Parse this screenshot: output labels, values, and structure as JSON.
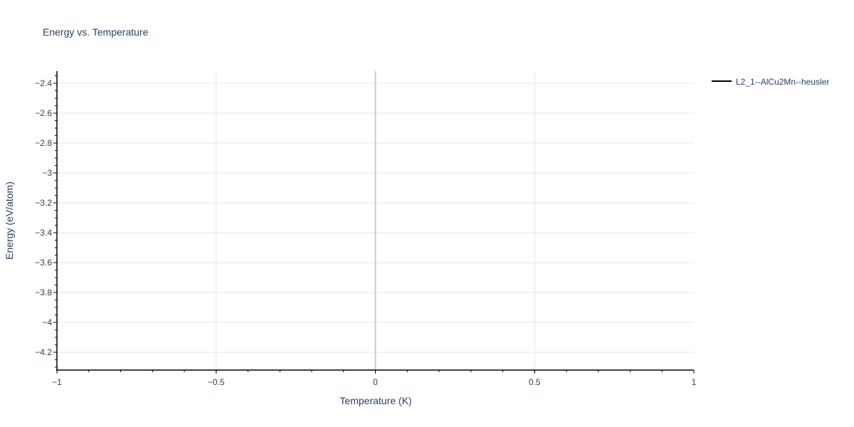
{
  "chart_data": {
    "type": "line",
    "title": "Energy vs. Temperature",
    "xlabel": "Temperature (K)",
    "ylabel": "Energy (eV/atom)",
    "xlim": [
      -1,
      1
    ],
    "ylim": [
      -4.319,
      -2.319
    ],
    "x_ticks": [
      -1,
      -0.5,
      0,
      0.5,
      1
    ],
    "x_tick_labels": [
      "−1",
      "−0.5",
      "0",
      "0.5",
      "1"
    ],
    "y_ticks": [
      -2.4,
      -2.6,
      -2.8,
      -3,
      -3.2,
      -3.4,
      -3.6,
      -3.8,
      -4,
      -4.2
    ],
    "y_tick_labels": [
      "−2.4",
      "−2.6",
      "−2.8",
      "−3",
      "−3.2",
      "−3.4",
      "−3.6",
      "−3.8",
      "−4",
      "−4.2"
    ],
    "x_minor_step": 0.1,
    "y_minor_step": 0.05,
    "grid": true,
    "legend_placement": "top-right, outside plot",
    "series": [
      {
        "name": "L2_1--AlCu2Mn--heusler",
        "color": "#000000",
        "x": [],
        "y": []
      }
    ]
  },
  "colors": {
    "grid": "#e5e5e5",
    "zeroline": "#c8c8c8",
    "axis": "#000000",
    "text": "#2a3f5f"
  }
}
